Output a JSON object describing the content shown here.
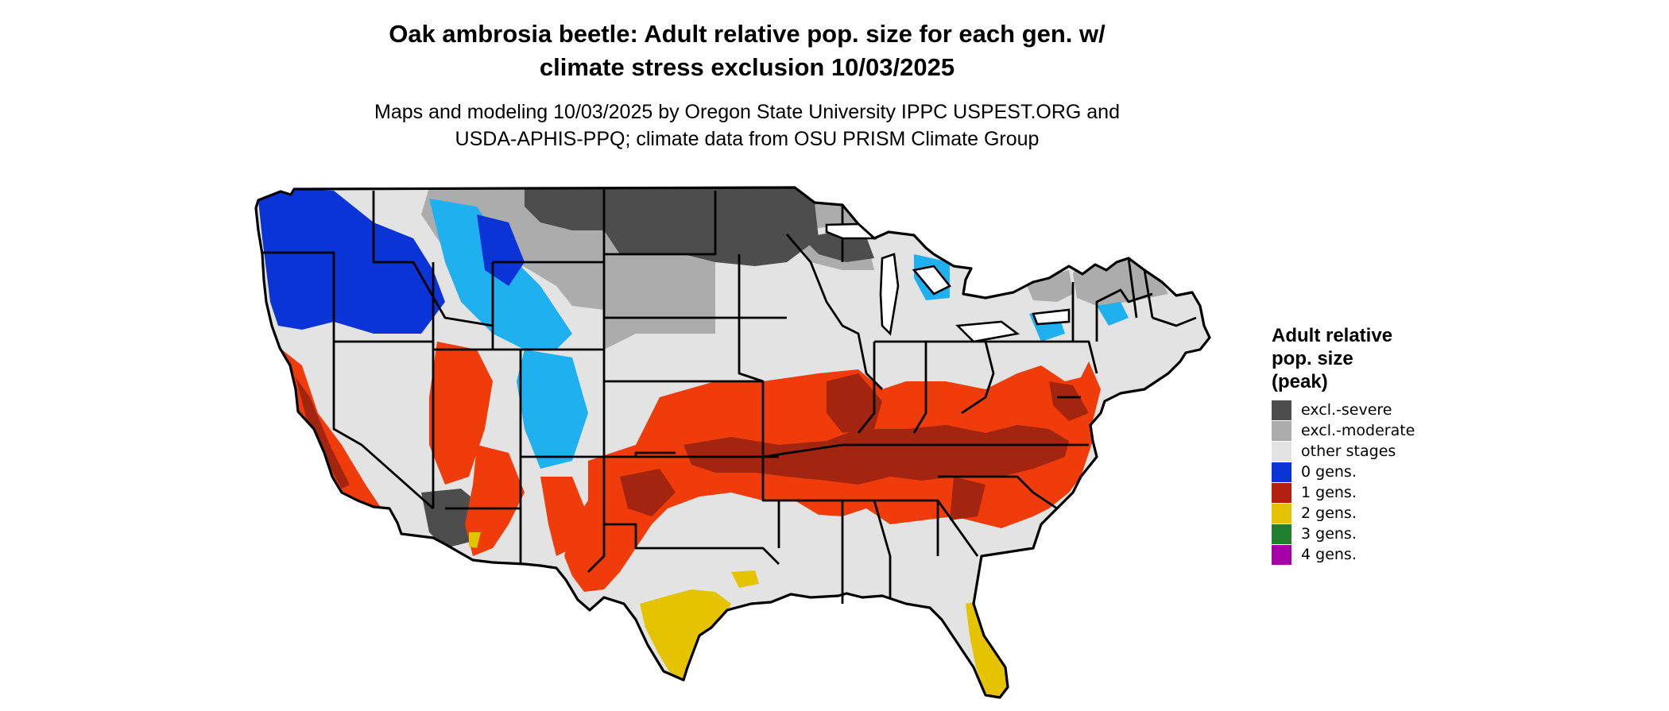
{
  "title": {
    "line1": "Oak ambrosia beetle: Adult relative pop. size for each gen. w/",
    "line2": "climate stress exclusion 10/03/2025"
  },
  "subtitle": {
    "line1": "Maps and modeling 10/03/2025 by Oregon State University IPPC USPEST.ORG and",
    "line2": "USDA-APHIS-PPQ; climate data from OSU PRISM Climate Group"
  },
  "legend": {
    "title_line1": "Adult relative",
    "title_line2": "pop. size",
    "title_line3": "(peak)",
    "items": [
      {
        "label": "excl.-severe",
        "color": "#4d4d4d"
      },
      {
        "label": "excl.-moderate",
        "color": "#acacac"
      },
      {
        "label": "other stages",
        "color": "#e3e3e3"
      },
      {
        "label": "0 gens.",
        "color": "#0a34d6"
      },
      {
        "label": "1 gens.",
        "color": "#b3200f"
      },
      {
        "label": "2 gens.",
        "color": "#e6c300"
      },
      {
        "label": "3 gens.",
        "color": "#1f7f2c"
      },
      {
        "label": "4 gens.",
        "color": "#a800a8"
      }
    ]
  },
  "map_colors": {
    "background_land": "#e3e3e3",
    "excl_severe": "#4d4d4d",
    "excl_moderate": "#acacac",
    "zero_gens_dark": "#0a34d6",
    "zero_gens_light": "#1fb0f0",
    "one_gen_orange": "#f03c0a",
    "one_gen_dark": "#a3250f",
    "two_gens": "#e6c300",
    "state_border": "#000000"
  }
}
